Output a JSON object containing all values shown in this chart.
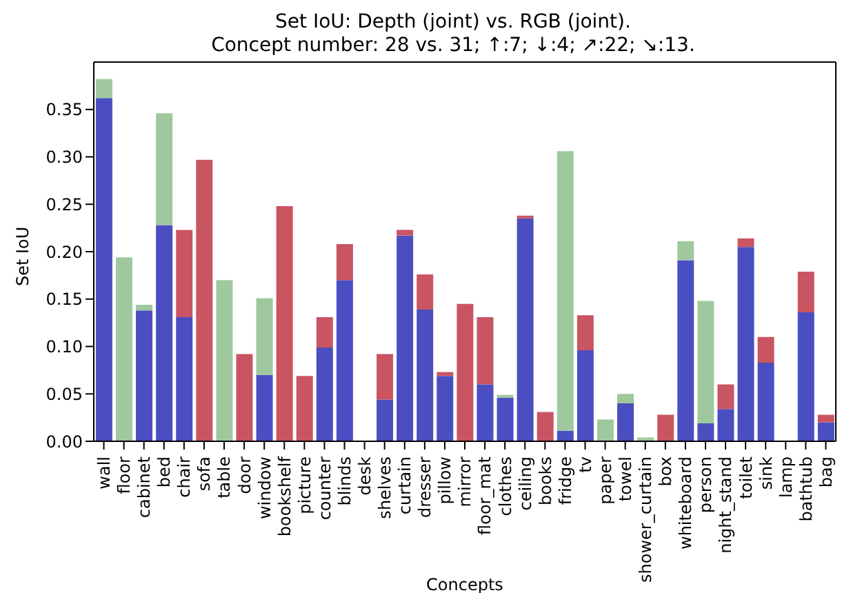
{
  "chart_data": {
    "type": "bar",
    "title": "Set IoU: Depth (joint) vs. RGB (joint).",
    "subtitle": "Concept number: 28 vs. 31;  ↑:7;  ↓:4;  ↗:22;  ↘:13.",
    "xlabel": "Concepts",
    "ylabel": "Set IoU",
    "stacked": true,
    "categories": [
      "wall",
      "floor",
      "cabinet",
      "bed",
      "chair",
      "sofa",
      "table",
      "door",
      "window",
      "bookshelf",
      "picture",
      "counter",
      "blinds",
      "desk",
      "shelves",
      "curtain",
      "dresser",
      "pillow",
      "mirror",
      "floor_mat",
      "clothes",
      "ceiling",
      "books",
      "fridge",
      "tv",
      "paper",
      "towel",
      "shower_curtain",
      "box",
      "whiteboard",
      "person",
      "night_stand",
      "toilet",
      "sink",
      "lamp",
      "bathtub",
      "bag"
    ],
    "series": [
      {
        "color": "#4b4ec1",
        "values": [
          0.362,
          null,
          0.138,
          0.228,
          0.131,
          null,
          null,
          null,
          0.07,
          null,
          null,
          0.099,
          0.17,
          null,
          0.044,
          0.217,
          0.139,
          0.069,
          null,
          0.06,
          0.046,
          0.235,
          null,
          0.011,
          0.096,
          null,
          0.04,
          null,
          null,
          0.191,
          0.019,
          0.034,
          0.205,
          0.083,
          null,
          0.136,
          0.02
        ]
      },
      {
        "color": "#a0c89e",
        "values": [
          0.02,
          0.194,
          0.006,
          0.118,
          null,
          null,
          0.17,
          null,
          0.081,
          null,
          null,
          null,
          null,
          null,
          null,
          null,
          null,
          null,
          null,
          null,
          0.003,
          null,
          null,
          0.295,
          null,
          0.023,
          0.01,
          0.004,
          null,
          0.02,
          0.129,
          null,
          null,
          null,
          null,
          null,
          null
        ]
      },
      {
        "color": "#c95563",
        "values": [
          null,
          null,
          null,
          null,
          0.092,
          0.297,
          null,
          0.092,
          null,
          0.248,
          0.069,
          0.032,
          0.038,
          null,
          0.048,
          0.006,
          0.037,
          0.004,
          0.145,
          0.071,
          null,
          0.003,
          0.031,
          null,
          0.037,
          null,
          null,
          null,
          0.028,
          null,
          null,
          0.026,
          0.009,
          0.027,
          null,
          0.043,
          0.008
        ]
      }
    ],
    "ylim": [
      0,
      0.4
    ],
    "yticks": [
      {
        "value": 0,
        "label": "0.00"
      },
      0.05,
      {
        "value": 0.1,
        "label": "0.10"
      },
      0.15,
      {
        "value": 0.2,
        "label": "0.20"
      },
      0.25,
      {
        "value": 0.3,
        "label": "0.30"
      },
      0.35
    ]
  }
}
